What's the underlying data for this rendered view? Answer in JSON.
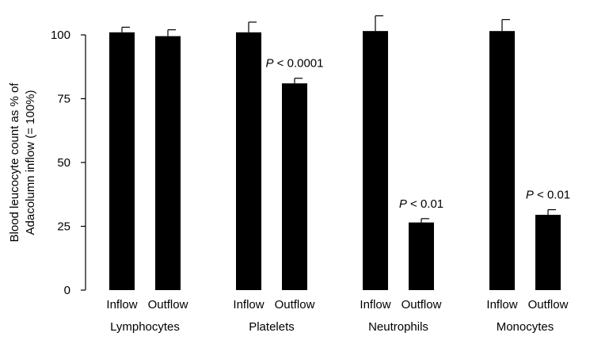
{
  "chart_data": {
    "type": "bar",
    "ylabel_lines": [
      "Blood leucocyte count as % of",
      "Adacolumn inflow (= 100%)"
    ],
    "xlabel": "",
    "ylim": [
      0,
      100
    ],
    "yticks": [
      0,
      25,
      50,
      75,
      100
    ],
    "groups": [
      {
        "name": "Lymphocytes",
        "bars": [
          {
            "label": "Inflow",
            "value": 101,
            "error": 2
          },
          {
            "label": "Outflow",
            "value": 99.5,
            "error": 2.5
          }
        ],
        "annotation": ""
      },
      {
        "name": "Platelets",
        "bars": [
          {
            "label": "Inflow",
            "value": 101,
            "error": 4
          },
          {
            "label": "Outflow",
            "value": 81,
            "error": 2
          }
        ],
        "annotation": "P < 0.0001"
      },
      {
        "name": "Neutrophils",
        "bars": [
          {
            "label": "Inflow",
            "value": 101.5,
            "error": 6
          },
          {
            "label": "Outflow",
            "value": 26.5,
            "error": 1.5
          }
        ],
        "annotation": "P < 0.01"
      },
      {
        "name": "Monocytes",
        "bars": [
          {
            "label": "Inflow",
            "value": 101.5,
            "error": 4.5
          },
          {
            "label": "Outflow",
            "value": 29.5,
            "error": 2
          }
        ],
        "annotation": "P < 0.01"
      }
    ],
    "bar_color": "#000000",
    "grid": false,
    "legend": "none"
  }
}
